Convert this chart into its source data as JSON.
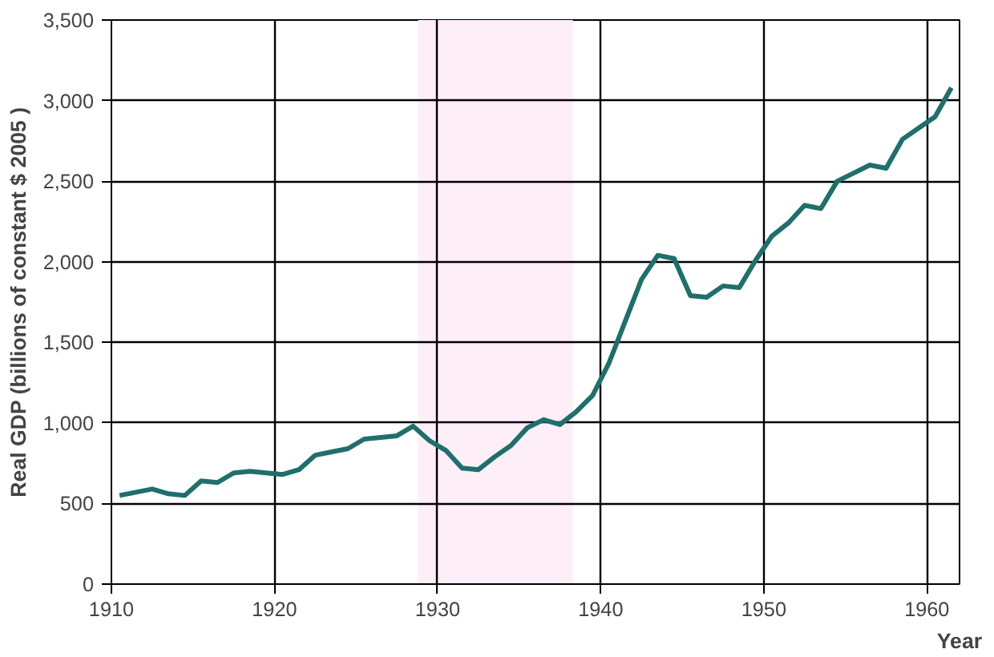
{
  "chart_data": {
    "type": "line",
    "xlabel": "Year",
    "ylabel": "Real GDP (billions of constant $ 2005 )",
    "x": [
      1910.5,
      1911.5,
      1912.5,
      1913.5,
      1914.5,
      1915.5,
      1916.5,
      1917.5,
      1918.5,
      1919.5,
      1920.5,
      1921.5,
      1922.5,
      1923.5,
      1924.5,
      1925.5,
      1926.5,
      1927.5,
      1928.5,
      1929.5,
      1930.5,
      1931.5,
      1932.5,
      1933.5,
      1934.5,
      1935.5,
      1936.5,
      1937.5,
      1938.5,
      1939.5,
      1940.5,
      1941.5,
      1942.5,
      1943.5,
      1944.5,
      1945.5,
      1946.5,
      1947.5,
      1948.5,
      1949.5,
      1950.5,
      1951.5,
      1952.5,
      1953.5,
      1954.5,
      1955.5,
      1956.5,
      1957.5,
      1958.5,
      1959.5,
      1960.5,
      1961.5
    ],
    "series": [
      {
        "color": "#1f6f6a",
        "values": [
          550,
          570,
          590,
          560,
          550,
          640,
          630,
          690,
          700,
          690,
          680,
          710,
          800,
          820,
          840,
          900,
          910,
          920,
          980,
          890,
          830,
          720,
          710,
          790,
          860,
          970,
          1020,
          990,
          1070,
          1170,
          1370,
          1630,
          1890,
          2040,
          2020,
          1790,
          1780,
          1850,
          1840,
          2010,
          2160,
          2240,
          2350,
          2330,
          2500,
          2550,
          2600,
          2580,
          2760,
          2830,
          2900,
          3080
        ]
      }
    ],
    "xlim": [
      1910,
      1962
    ],
    "xticks": [
      1910,
      1920,
      1930,
      1940,
      1950,
      1960
    ],
    "ylim": [
      0,
      3500
    ],
    "yticks": [
      {
        "value": 0,
        "label": "0"
      },
      {
        "value": 500,
        "label": "500"
      },
      {
        "value": 1000,
        "label": "1,000"
      },
      {
        "value": 1500,
        "label": "1,500"
      },
      {
        "value": 2000,
        "label": "2,000"
      },
      {
        "value": 2500,
        "label": "2,500"
      },
      {
        "value": 3000,
        "label": "3,000"
      },
      {
        "value": 3500,
        "label": "3,500"
      }
    ],
    "bands": [
      {
        "axis": "x",
        "from": 1928.8,
        "to": 1938.3,
        "color": "#fdeef8"
      }
    ],
    "grid": true,
    "line_style": "solid"
  }
}
